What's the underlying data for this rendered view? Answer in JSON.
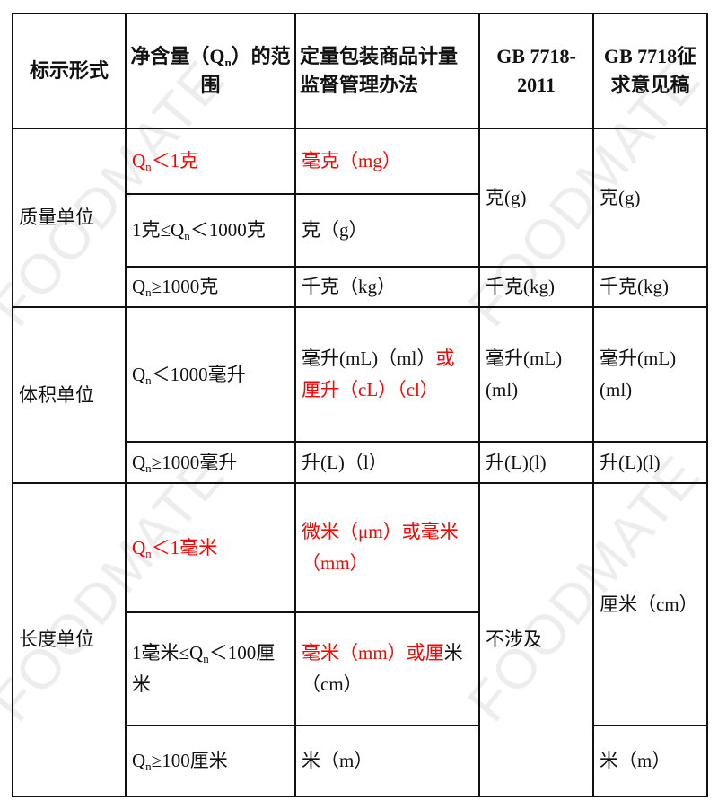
{
  "watermark": "FOODMATE",
  "header": {
    "col1": "标示形式",
    "col2_a": "净含量（Q",
    "col2_sub": "n",
    "col2_b": "）的范围",
    "col3": "定量包装商品计量监督管理办法",
    "col4": "GB 7718-2011",
    "col5": "GB 7718征求意见稿"
  },
  "mass": {
    "label": "质量单位",
    "r1": {
      "range_a": "Q",
      "range_sub": "n",
      "range_b": "＜1克",
      "measure": "毫克（mg）"
    },
    "r2": {
      "range_a": "1克≤Q",
      "range_sub": "n",
      "range_b": "＜1000克",
      "measure": "克（g）"
    },
    "r12_gb": "克(g)",
    "r12_draft": "克(g)",
    "r3": {
      "range_a": "Q",
      "range_sub": "n",
      "range_b": "≥1000克",
      "measure": "千克（kg）",
      "gb": "千克(kg)",
      "draft": "千克(kg)"
    }
  },
  "volume": {
    "label": "体积单位",
    "r1": {
      "range_a": "Q",
      "range_sub": "n",
      "range_b": "＜1000毫升",
      "measure_black": "毫升(mL)（ml）",
      "measure_red": "或厘升（cL）（cl）",
      "gb": "毫升(mL)(ml)",
      "draft": "毫升(mL)(ml)"
    },
    "r2": {
      "range_a": "Q",
      "range_sub": "n",
      "range_b": "≥1000毫升",
      "measure": "升(L)（l）",
      "gb": "升(L)(l)",
      "draft": "升(L)(l)"
    }
  },
  "length": {
    "label": "长度单位",
    "gb": "不涉及",
    "r1": {
      "range_a": "Q",
      "range_sub": "n",
      "range_b": "＜1毫米",
      "measure": "微米（μm）或毫米（mm）"
    },
    "r2": {
      "range_a": "1毫米≤Q",
      "range_sub": "n",
      "range_b": "＜100厘米",
      "measure_red": "毫米（mm）或厘",
      "measure_black": "米（cm）"
    },
    "r12_draft": "厘米（cm）",
    "r3": {
      "range_a": "Q",
      "range_sub": "n",
      "range_b": "≥100厘米",
      "measure": "米（m）",
      "draft": "米（m）"
    }
  },
  "colors": {
    "highlight": "#ff0000",
    "border": "#111111"
  }
}
